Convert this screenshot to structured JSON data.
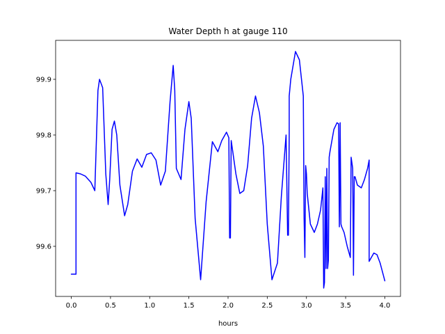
{
  "chart_data": {
    "type": "line",
    "title": "Water Depth h at gauge 110",
    "xlabel": "hours",
    "ylabel": "",
    "xlim": [
      -0.2,
      4.2
    ],
    "ylim": [
      99.51,
      99.97
    ],
    "x_ticks": [
      0.0,
      0.5,
      1.0,
      1.5,
      2.0,
      2.5,
      3.0,
      3.5,
      4.0
    ],
    "x_tick_labels": [
      "0.0",
      "0.5",
      "1.0",
      "1.5",
      "2.0",
      "2.5",
      "3.0",
      "3.5",
      "4.0"
    ],
    "y_ticks": [
      99.6,
      99.7,
      99.8,
      99.9
    ],
    "y_tick_labels": [
      "99.6",
      "99.7",
      "99.8",
      "99.9"
    ],
    "grid": false,
    "legend": "none",
    "series": [
      {
        "color": "#0000ff",
        "x": [
          0.0,
          0.06,
          0.06,
          0.12,
          0.18,
          0.25,
          0.3,
          0.34,
          0.36,
          0.4,
          0.44,
          0.47,
          0.49,
          0.52,
          0.55,
          0.58,
          0.62,
          0.68,
          0.72,
          0.78,
          0.84,
          0.9,
          0.96,
          1.02,
          1.08,
          1.14,
          1.2,
          1.26,
          1.3,
          1.32,
          1.34,
          1.4,
          1.45,
          1.5,
          1.53,
          1.58,
          1.65,
          1.72,
          1.8,
          1.87,
          1.92,
          1.98,
          2.01,
          2.02,
          2.03,
          2.04,
          2.05,
          2.1,
          2.15,
          2.2,
          2.25,
          2.3,
          2.35,
          2.4,
          2.45,
          2.5,
          2.56,
          2.63,
          2.68,
          2.74,
          2.76,
          2.77,
          2.78,
          2.78,
          2.8,
          2.86,
          2.91,
          2.96,
          2.97,
          2.98,
          2.99,
          3.0,
          3.01,
          3.05,
          3.1,
          3.14,
          3.18,
          3.21,
          3.22,
          3.23,
          3.24,
          3.25,
          3.26,
          3.27,
          3.28,
          3.29,
          3.3,
          3.35,
          3.39,
          3.41,
          3.42,
          3.43,
          3.43,
          3.44,
          3.45,
          3.48,
          3.52,
          3.56,
          3.57,
          3.59,
          3.6,
          3.61,
          3.62,
          3.65,
          3.7,
          3.74,
          3.78,
          3.8,
          3.8,
          3.82,
          3.86,
          3.9,
          3.94,
          4.0
        ],
        "y": [
          99.55,
          99.55,
          99.732,
          99.73,
          99.726,
          99.715,
          99.7,
          99.88,
          99.9,
          99.885,
          99.73,
          99.675,
          99.72,
          99.81,
          99.825,
          99.8,
          99.71,
          99.655,
          99.675,
          99.735,
          99.757,
          99.742,
          99.765,
          99.768,
          99.755,
          99.71,
          99.735,
          99.86,
          99.925,
          99.88,
          99.74,
          99.72,
          99.81,
          99.86,
          99.83,
          99.65,
          99.54,
          99.68,
          99.788,
          99.77,
          99.79,
          99.805,
          99.795,
          99.615,
          99.615,
          99.79,
          99.78,
          99.73,
          99.695,
          99.7,
          99.745,
          99.83,
          99.87,
          99.84,
          99.78,
          99.64,
          99.54,
          99.57,
          99.69,
          99.8,
          99.62,
          99.62,
          99.8,
          99.87,
          99.9,
          99.95,
          99.935,
          99.87,
          99.65,
          99.58,
          99.745,
          99.73,
          99.695,
          99.64,
          99.625,
          99.64,
          99.665,
          99.705,
          99.525,
          99.535,
          99.725,
          99.56,
          99.74,
          99.56,
          99.575,
          99.76,
          99.77,
          99.81,
          99.822,
          99.82,
          99.635,
          99.82,
          99.822,
          99.64,
          99.635,
          99.625,
          99.6,
          99.58,
          99.76,
          99.74,
          99.548,
          99.725,
          99.725,
          99.71,
          99.705,
          99.72,
          99.74,
          99.755,
          99.573,
          99.578,
          99.588,
          99.585,
          99.57,
          99.538
        ]
      }
    ]
  }
}
